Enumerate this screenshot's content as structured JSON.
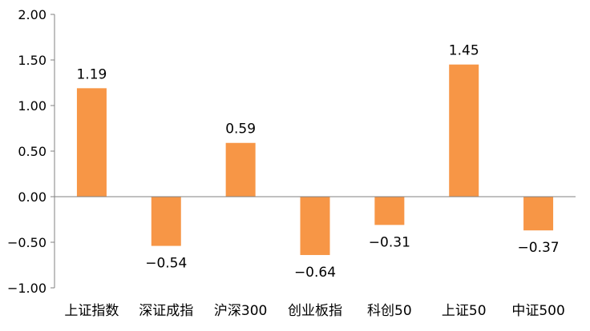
{
  "chart_data": {
    "type": "bar",
    "categories": [
      "上证指数",
      "深证成指",
      "沪深300",
      "创业板指",
      "科创50",
      "上证50",
      "中证500"
    ],
    "values": [
      1.19,
      -0.54,
      0.59,
      -0.64,
      -0.31,
      1.45,
      -0.37
    ],
    "data_labels": [
      "1.19",
      "−0.54",
      "0.59",
      "−0.64",
      "−0.31",
      "1.45",
      "−0.37"
    ],
    "ylim": [
      -1.0,
      2.0
    ],
    "yticks": [
      2.0,
      1.5,
      1.0,
      0.5,
      0.0,
      -0.5,
      -1.0
    ],
    "ytick_labels": [
      "2.00",
      "1.50",
      "1.00",
      "0.50",
      "0.00",
      "−0.50",
      "−1.00"
    ],
    "title": "",
    "xlabel": "",
    "ylabel": "",
    "grid": false,
    "legend": "none",
    "bar_color": "#F79646",
    "axis_color": "#808080"
  }
}
